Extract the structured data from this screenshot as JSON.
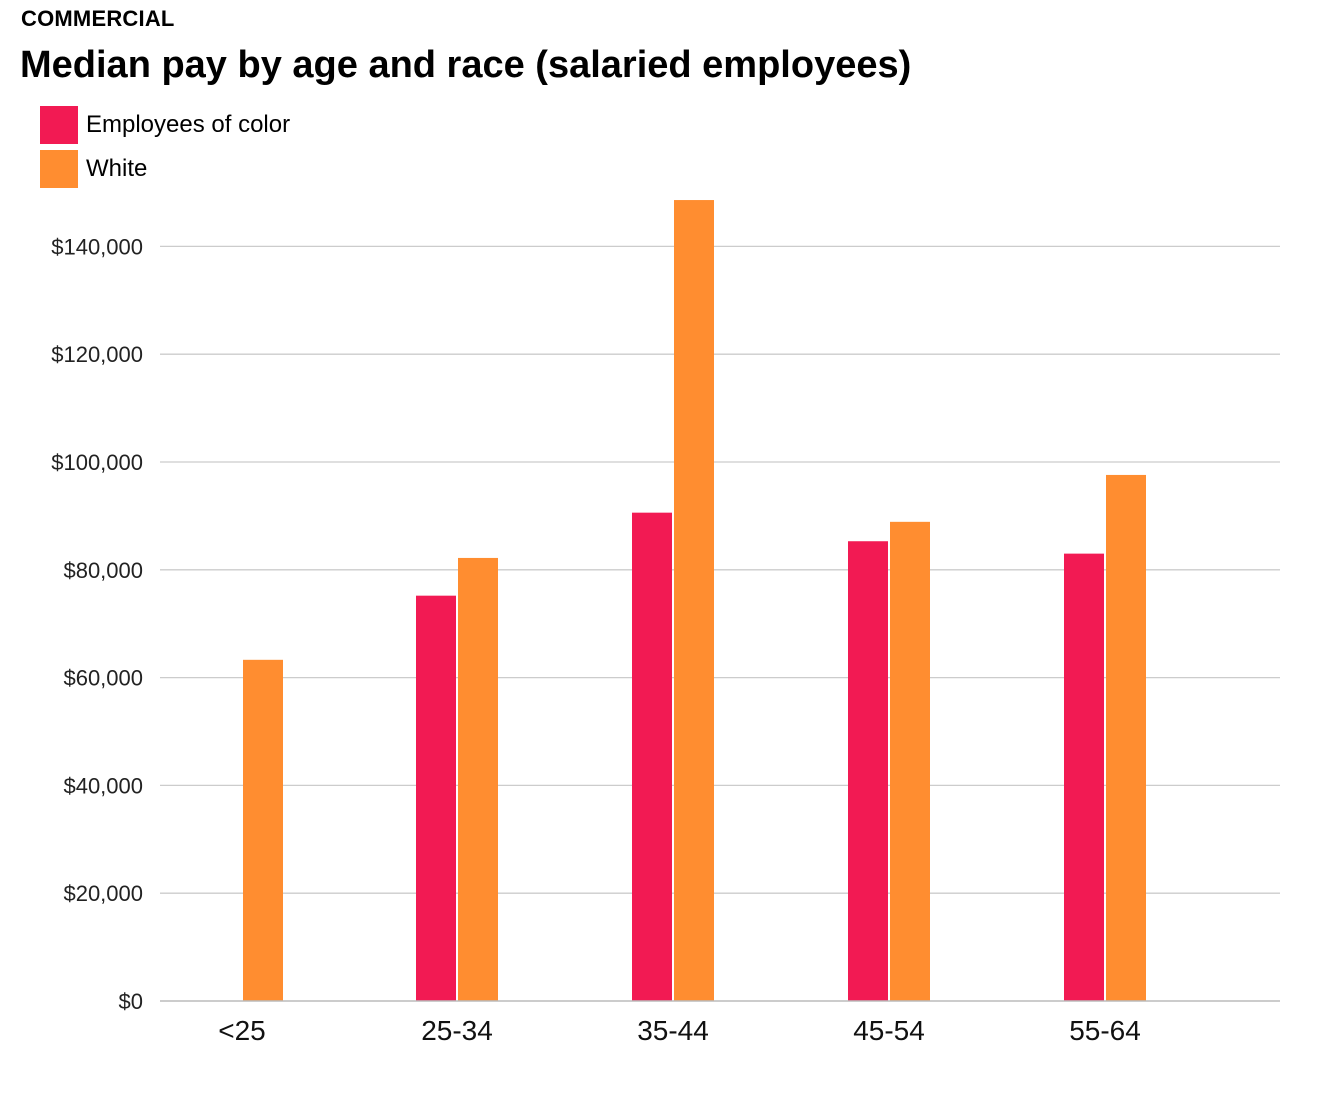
{
  "header": {
    "kicker": "COMMERCIAL",
    "title": "Median pay by age and race (salaried employees)"
  },
  "legend": {
    "items": [
      {
        "label": "Employees of color",
        "color": "#f21a53"
      },
      {
        "label": "White",
        "color": "#ff8d30"
      }
    ]
  },
  "chart_data": {
    "type": "bar",
    "title": "Median pay by age and race (salaried employees)",
    "xlabel": "",
    "ylabel": "",
    "categories": [
      "<25",
      "25-34",
      "35-44",
      "45-54",
      "55-64"
    ],
    "series": [
      {
        "name": "Employees of color",
        "color": "#f21a53",
        "values": [
          null,
          75200,
          90600,
          85300,
          83000
        ]
      },
      {
        "name": "White",
        "color": "#ff8d30",
        "values": [
          63300,
          82200,
          148600,
          88900,
          97600
        ]
      }
    ],
    "ylim": [
      0,
      150000
    ],
    "yticks": [
      0,
      20000,
      40000,
      60000,
      80000,
      100000,
      120000,
      140000
    ],
    "ytick_labels": [
      "$0",
      "$20,000",
      "$40,000",
      "$60,000",
      "$80,000",
      "$100,000",
      "$120,000",
      "$140,000"
    ],
    "grid": true,
    "legend_position": "top-left"
  }
}
